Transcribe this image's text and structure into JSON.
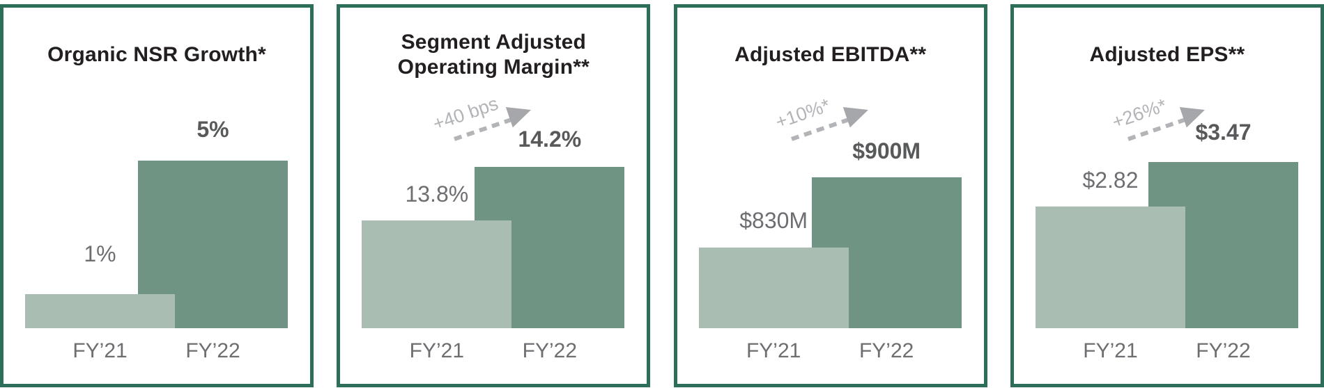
{
  "colors": {
    "panel_border_green": "#2c6e5a",
    "bar_fy21_light_green": "#a9bdb2",
    "bar_fy22_dark_green": "#6f9484",
    "title_text": "#231f20",
    "value_text_gray": "#6d6e71",
    "value_text_bold_gray": "#58595b",
    "annotation_gray": "#b2b4b7"
  },
  "panels": [
    {
      "title_line1": "Organic NSR Growth*",
      "title_line2": "",
      "annotation": "",
      "fy21_label": "FY’21",
      "fy22_label": "FY’22",
      "fy21_value": "1%",
      "fy22_value": "5%",
      "layout": {
        "h21": 49,
        "h22": 241,
        "gap21": 41,
        "gap22": 28
      }
    },
    {
      "title_line1": "Segment Adjusted",
      "title_line2": "Operating Margin**",
      "annotation": "+40 bps",
      "fy21_label": "FY’21",
      "fy22_label": "FY’22",
      "fy21_value": "13.8%",
      "fy22_value": "14.2%",
      "layout": {
        "h21": 155,
        "h22": 232,
        "gap21": 21,
        "gap22": 23
      }
    },
    {
      "title_line1": "Adjusted EBITDA**",
      "title_line2": "",
      "annotation": "+10%*",
      "fy21_label": "FY’21",
      "fy22_label": "FY’22",
      "fy21_value": "$830M",
      "fy22_value": "$900M",
      "layout": {
        "h21": 116,
        "h22": 217,
        "gap21": 22,
        "gap22": 21
      }
    },
    {
      "title_line1": "Adjusted EPS**",
      "title_line2": "",
      "annotation": "+26%*",
      "fy21_label": "FY’21",
      "fy22_label": "FY’22",
      "fy21_value": "$2.82",
      "fy22_value": "$3.47",
      "layout": {
        "h21": 175,
        "h22": 239,
        "gap21": 21,
        "gap22": 26
      }
    }
  ],
  "chart_data": [
    {
      "type": "bar",
      "title": "Organic NSR Growth*",
      "categories": [
        "FY’21",
        "FY’22"
      ],
      "values": [
        1,
        5
      ],
      "unit": "percent",
      "data_labels": [
        "1%",
        "5%"
      ],
      "annotation": null,
      "legend": "none",
      "grid": false,
      "bar_colors": [
        "#a9bdb2",
        "#6f9484"
      ]
    },
    {
      "type": "bar",
      "title": "Segment Adjusted Operating Margin**",
      "categories": [
        "FY’21",
        "FY’22"
      ],
      "values": [
        13.8,
        14.2
      ],
      "unit": "percent",
      "data_labels": [
        "13.8%",
        "14.2%"
      ],
      "annotation": "+40 bps",
      "legend": "none",
      "grid": false,
      "bar_colors": [
        "#a9bdb2",
        "#6f9484"
      ]
    },
    {
      "type": "bar",
      "title": "Adjusted EBITDA**",
      "categories": [
        "FY’21",
        "FY’22"
      ],
      "values": [
        830,
        900
      ],
      "unit": "USD millions",
      "data_labels": [
        "$830M",
        "$900M"
      ],
      "annotation": "+10%*",
      "legend": "none",
      "grid": false,
      "bar_colors": [
        "#a9bdb2",
        "#6f9484"
      ]
    },
    {
      "type": "bar",
      "title": "Adjusted EPS**",
      "categories": [
        "FY’21",
        "FY’22"
      ],
      "values": [
        2.82,
        3.47
      ],
      "unit": "USD",
      "data_labels": [
        "$2.82",
        "$3.47"
      ],
      "annotation": "+26%*",
      "legend": "none",
      "grid": false,
      "bar_colors": [
        "#a9bdb2",
        "#6f9484"
      ]
    }
  ]
}
